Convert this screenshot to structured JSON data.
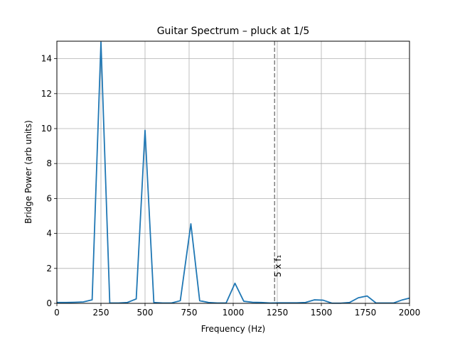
{
  "chart_data": {
    "type": "line",
    "title": "Guitar Spectrum – pluck at 1/5",
    "xlabel": "Frequency (Hz)",
    "ylabel": "Bridge Power (arb units)",
    "xlim": [
      0,
      2000
    ],
    "ylim": [
      0,
      15
    ],
    "xticks": [
      0,
      250,
      500,
      750,
      1000,
      1250,
      1500,
      1750,
      2000
    ],
    "yticks": [
      0,
      2,
      4,
      6,
      8,
      10,
      12,
      14
    ],
    "grid": true,
    "line_color": "#1f77b4",
    "series": [
      {
        "x": [
          0,
          50,
          100,
          150,
          200,
          250,
          300,
          350,
          400,
          450,
          500,
          550,
          600,
          650,
          700,
          760,
          810,
          860,
          910,
          960,
          1010,
          1060,
          1110,
          1160,
          1210,
          1260,
          1310,
          1360,
          1410,
          1460,
          1510,
          1560,
          1610,
          1660,
          1710,
          1760,
          1810,
          1860,
          1910,
          1960,
          2000
        ],
        "y": [
          0.05,
          0.05,
          0.06,
          0.08,
          0.2,
          14.95,
          0.02,
          0.02,
          0.05,
          0.25,
          9.9,
          0.05,
          0.02,
          0.02,
          0.15,
          4.55,
          0.15,
          0.05,
          0.02,
          0.02,
          1.15,
          0.12,
          0.06,
          0.05,
          0.02,
          0.03,
          0.03,
          0.03,
          0.05,
          0.2,
          0.18,
          0.01,
          0.01,
          0.05,
          0.32,
          0.42,
          0.02,
          0.02,
          0.02,
          0.2,
          0.3
        ]
      }
    ],
    "vline": {
      "x": 1235,
      "color": "#808080",
      "style": "dashed"
    },
    "annotation": {
      "text": "5 x f₁",
      "x": 1270,
      "y": 1.5
    }
  }
}
